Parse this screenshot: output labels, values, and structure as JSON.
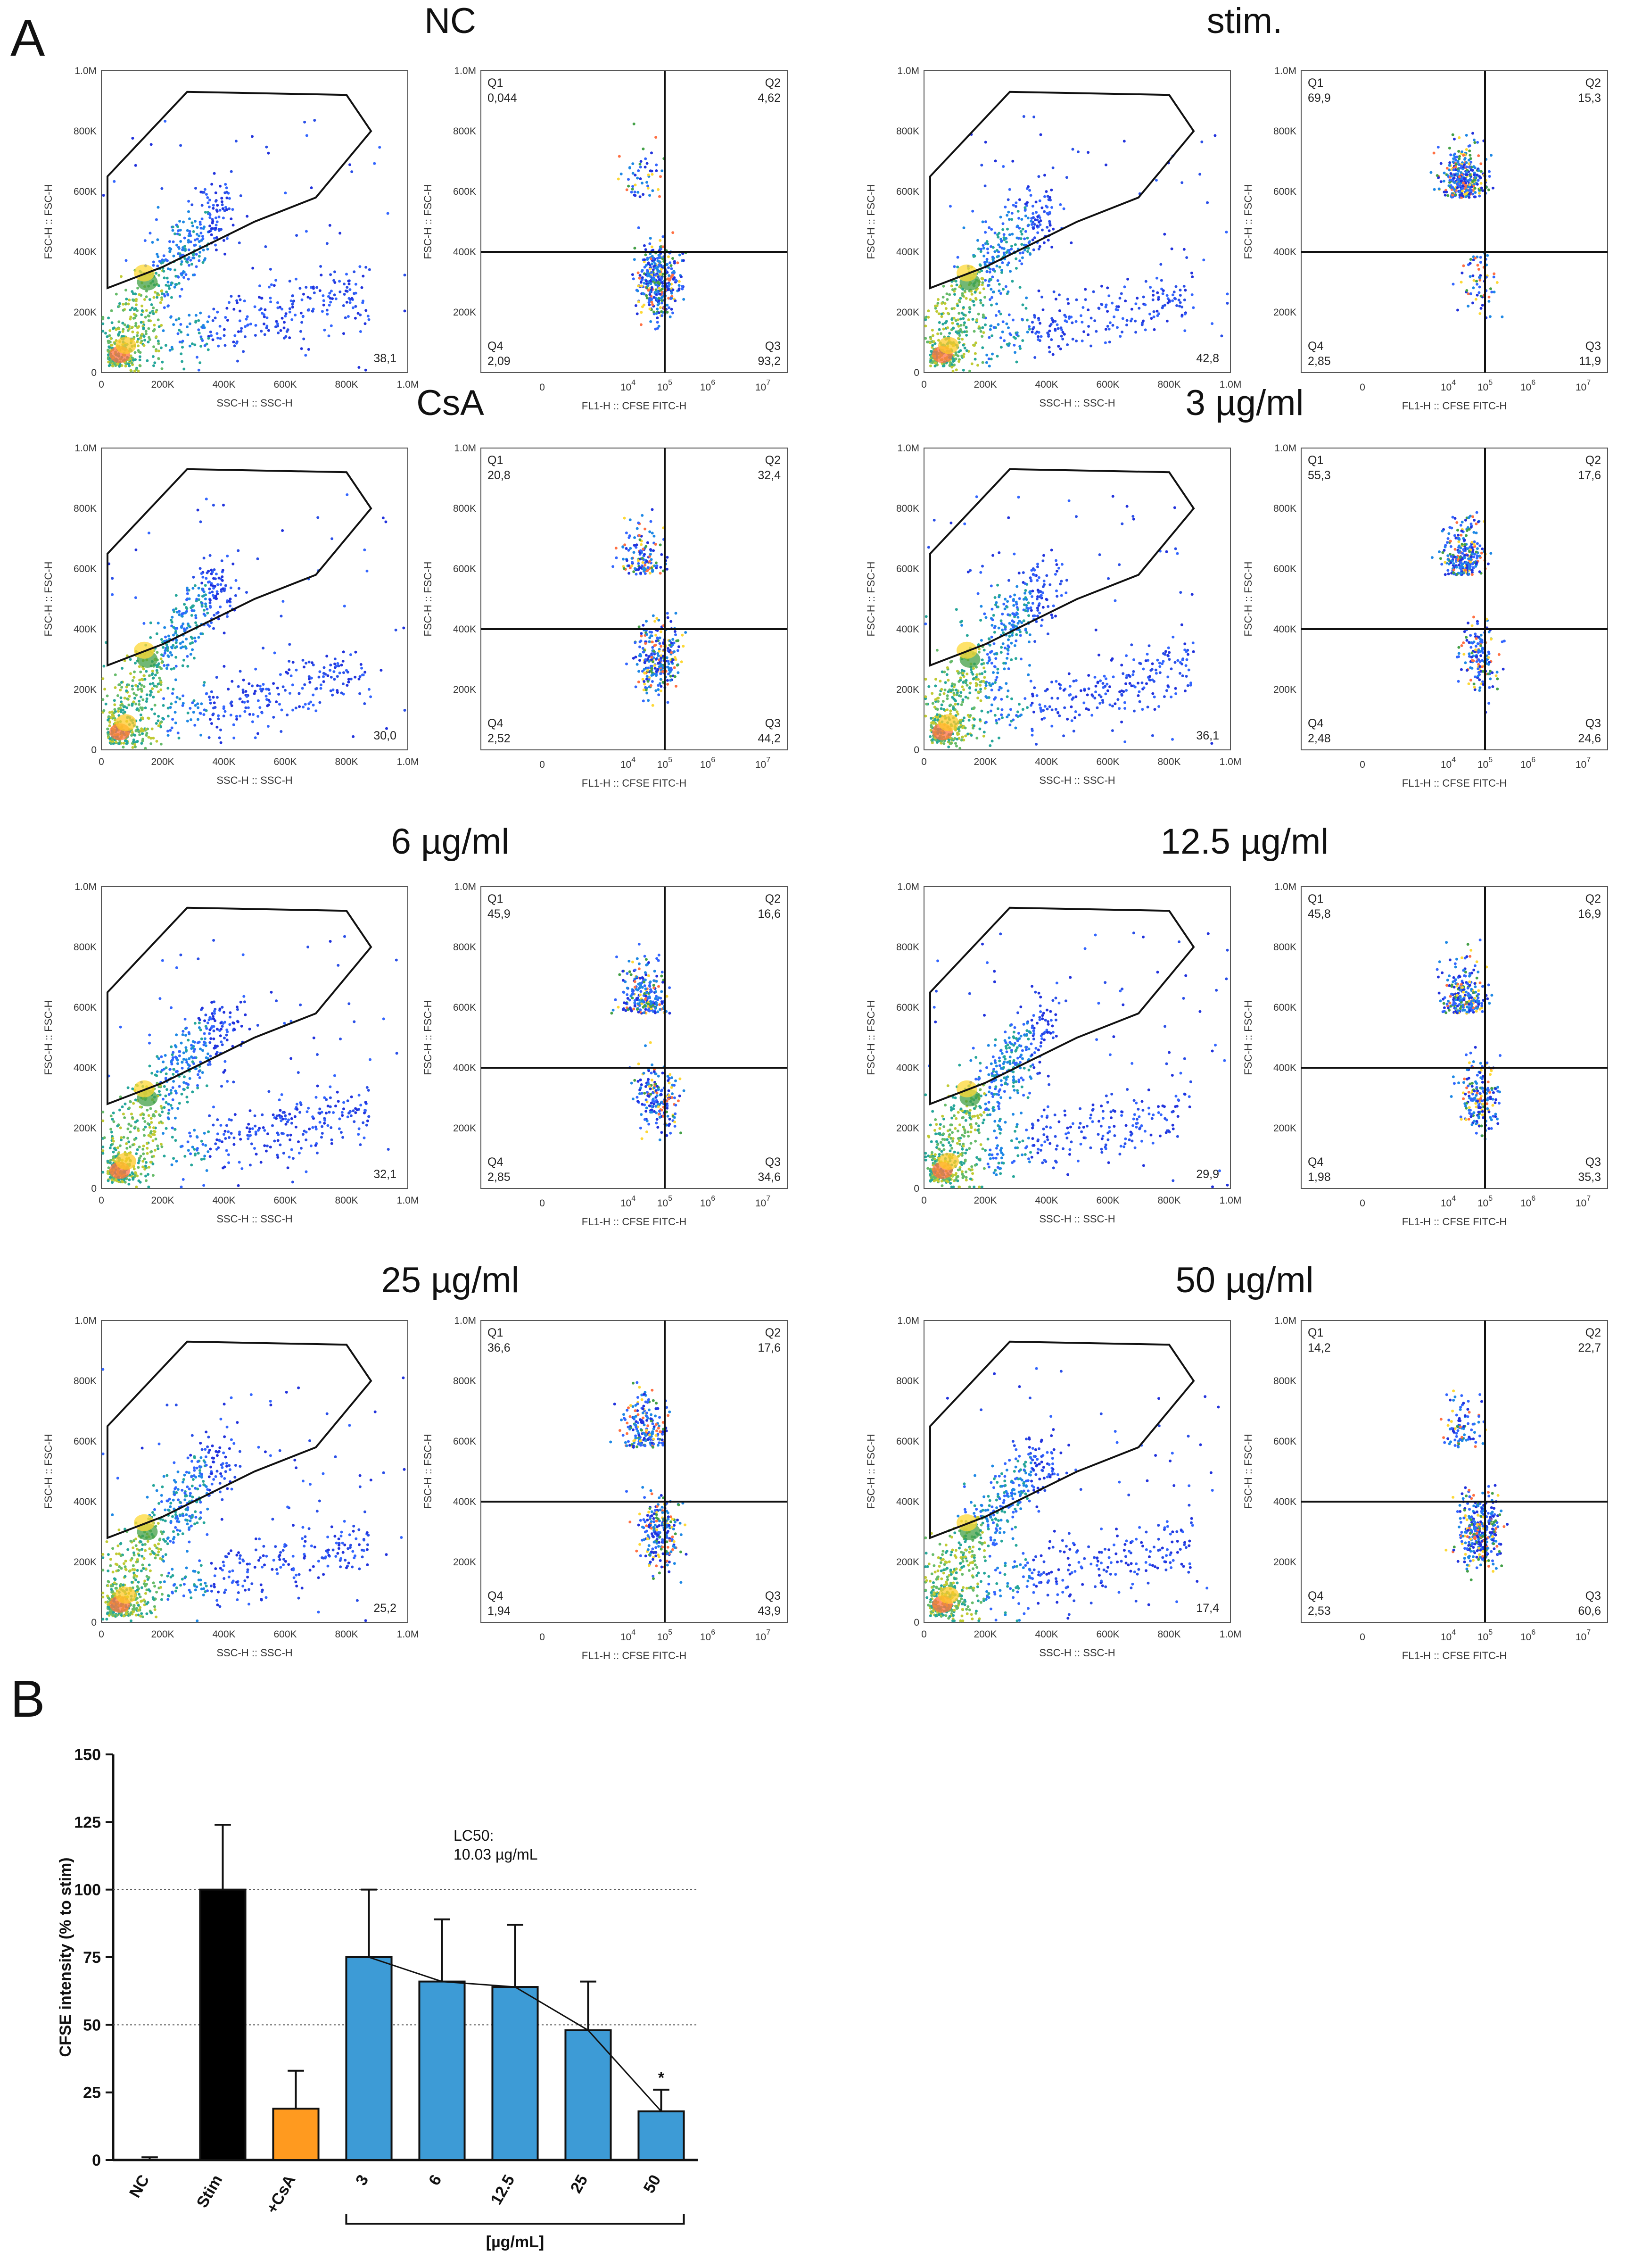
{
  "figure": {
    "panel_a_label": "A",
    "panel_b_label": "B"
  },
  "flow_panels": [
    {
      "title": "NC",
      "gate_pct": "38,1",
      "q1": "0,044",
      "q2": "4,62",
      "q3": "93,2",
      "q4": "2,09"
    },
    {
      "title": "stim.",
      "gate_pct": "42,8",
      "q1": "69,9",
      "q2": "15,3",
      "q3": "11,9",
      "q4": "2,85"
    },
    {
      "title": "CsA",
      "gate_pct": "30,0",
      "q1": "20,8",
      "q2": "32,4",
      "q3": "44,2",
      "q4": "2,52"
    },
    {
      "title": "3 µg/ml",
      "gate_pct": "36,1",
      "q1": "55,3",
      "q2": "17,6",
      "q3": "24,6",
      "q4": "2,48"
    },
    {
      "title": "6 µg/ml",
      "gate_pct": "32,1",
      "q1": "45,9",
      "q2": "16,6",
      "q3": "34,6",
      "q4": "2,85"
    },
    {
      "title": "12.5 µg/ml",
      "gate_pct": "29,9",
      "q1": "45,8",
      "q2": "16,9",
      "q3": "35,3",
      "q4": "1,98"
    },
    {
      "title": "25 µg/ml",
      "gate_pct": "25,2",
      "q1": "36,6",
      "q2": "17,6",
      "q3": "43,9",
      "q4": "1,94"
    },
    {
      "title": "50 µg/ml",
      "gate_pct": "17,4",
      "q1": "14,2",
      "q2": "22,7",
      "q3": "60,6",
      "q4": "2,53"
    }
  ],
  "flow_axes": {
    "scatter_xlabel": "SSC-H :: SSC-H",
    "scatter_ylabel": "FSC-H :: FSC-H",
    "quad_xlabel": "FL1-H :: CFSE FITC-H",
    "quad_ylabel": "FSC-H :: FSC-H",
    "scatter_xticks": [
      "0",
      "200K",
      "400K",
      "600K",
      "800K",
      "1.0M"
    ],
    "scatter_yticks": [
      "0",
      "200K",
      "400K",
      "600K",
      "800K",
      "1.0M"
    ],
    "quad_yticks": [
      "200K",
      "400K",
      "600K",
      "800K",
      "1.0M"
    ],
    "quad_xticks": [
      {
        "base": "0",
        "exp": ""
      },
      {
        "base": "10",
        "exp": "4"
      },
      {
        "base": "10",
        "exp": "5"
      },
      {
        "base": "10",
        "exp": "6"
      },
      {
        "base": "10",
        "exp": "7"
      }
    ],
    "quad_names": [
      "Q1",
      "Q2",
      "Q3",
      "Q4"
    ]
  },
  "chart_data": {
    "type": "bar",
    "categories": [
      "NC",
      "Stim",
      "+CsA",
      "3",
      "6",
      "12.5",
      "25",
      "50"
    ],
    "values": [
      0,
      100,
      19,
      75,
      66,
      64,
      48,
      18
    ],
    "errors": [
      1,
      24,
      14,
      25,
      23,
      23,
      18,
      8
    ],
    "bar_colors": [
      "#ffffff",
      "#000000",
      "#ff9a1f",
      "#3d9bd6",
      "#3d9bd6",
      "#3d9bd6",
      "#3d9bd6",
      "#3d9bd6"
    ],
    "ylabel": "CFSE intensity (% to stim)",
    "ylim": [
      0,
      150
    ],
    "yticks": [
      0,
      25,
      50,
      75,
      100,
      125,
      150
    ],
    "reference_lines": [
      50,
      100
    ],
    "fit_curve": {
      "x_categories": [
        "3",
        "6",
        "12.5",
        "25",
        "50"
      ],
      "y": [
        75,
        66,
        64,
        48,
        18
      ]
    },
    "annotation": {
      "line1": "LC50:",
      "line2": "10.03 µg/mL"
    },
    "group_label": "[µg/mL]",
    "significance": {
      "category": "50",
      "mark": "*"
    }
  }
}
